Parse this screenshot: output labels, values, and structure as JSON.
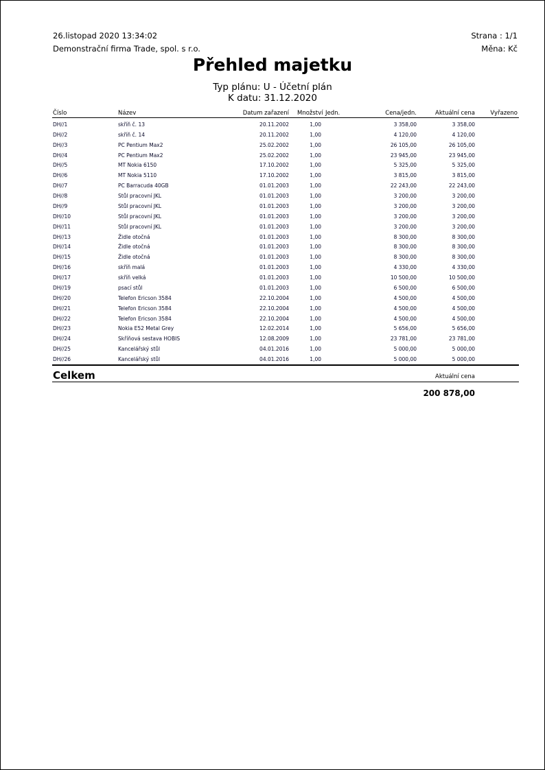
{
  "header": {
    "datetime": "26.listopad 2020 13:34:02",
    "company": "Demonstrační firma Trade, spol. s r.o.",
    "page": "Strana : 1/1",
    "currency": "Měna: Kč",
    "title": "Přehled majetku",
    "plan_type": "Typ plánu: U - Účetní plán",
    "as_of": "K datu: 31.12.2020"
  },
  "columns": {
    "number": "Číslo",
    "name": "Název",
    "date": "Datum zařazení",
    "qty": "Množství",
    "unit": "Jedn.",
    "unit_price": "Cena/jedn.",
    "current_price": "Aktuální cena",
    "retired": "Vyřazeno"
  },
  "rows": [
    [
      "DH//1",
      "skříň č. 13",
      "20.11.2002",
      "1,00",
      "3 358,00",
      "3 358,00"
    ],
    [
      "DH//2",
      "skříň č. 14",
      "20.11.2002",
      "1,00",
      "4 120,00",
      "4 120,00"
    ],
    [
      "DH//3",
      "PC Pentium Max2",
      "25.02.2002",
      "1,00",
      "26 105,00",
      "26 105,00"
    ],
    [
      "DH//4",
      "PC Pentium Max2",
      "25.02.2002",
      "1,00",
      "23 945,00",
      "23 945,00"
    ],
    [
      "DH//5",
      "MT Nokia 6150",
      "17.10.2002",
      "1,00",
      "5 325,00",
      "5 325,00"
    ],
    [
      "DH//6",
      "MT Nokia 5110",
      "17.10.2002",
      "1,00",
      "3 815,00",
      "3 815,00"
    ],
    [
      "DH//7",
      "PC Barracuda 40GB",
      "01.01.2003",
      "1,00",
      "22 243,00",
      "22 243,00"
    ],
    [
      "DH//8",
      "Stůl pracovní JKL",
      "01.01.2003",
      "1,00",
      "3 200,00",
      "3 200,00"
    ],
    [
      "DH//9",
      "Stůl pracovní JKL",
      "01.01.2003",
      "1,00",
      "3 200,00",
      "3 200,00"
    ],
    [
      "DH//10",
      "Stůl pracovní JKL",
      "01.01.2003",
      "1,00",
      "3 200,00",
      "3 200,00"
    ],
    [
      "DH//11",
      "Stůl pracovní JKL",
      "01.01.2003",
      "1,00",
      "3 200,00",
      "3 200,00"
    ],
    [
      "DH//13",
      "Židle otočná",
      "01.01.2003",
      "1,00",
      "8 300,00",
      "8 300,00"
    ],
    [
      "DH//14",
      "Židle otočná",
      "01.01.2003",
      "1,00",
      "8 300,00",
      "8 300,00"
    ],
    [
      "DH//15",
      "Židle otočná",
      "01.01.2003",
      "1,00",
      "8 300,00",
      "8 300,00"
    ],
    [
      "DH//16",
      "skříň malá",
      "01.01.2003",
      "1,00",
      "4 330,00",
      "4 330,00"
    ],
    [
      "DH//17",
      "skříň velká",
      "01.01.2003",
      "1,00",
      "10 500,00",
      "10 500,00"
    ],
    [
      "DH//19",
      "psací stůl",
      "01.01.2003",
      "1,00",
      "6 500,00",
      "6 500,00"
    ],
    [
      "DH//20",
      "Telefon Ericson 3584",
      "22.10.2004",
      "1,00",
      "4 500,00",
      "4 500,00"
    ],
    [
      "DH//21",
      "Telefon Ericson 3584",
      "22.10.2004",
      "1,00",
      "4 500,00",
      "4 500,00"
    ],
    [
      "DH//22",
      "Telefon Ericson 3584",
      "22.10.2004",
      "1,00",
      "4 500,00",
      "4 500,00"
    ],
    [
      "DH//23",
      "Nokia E52 Metal Grey",
      "12.02.2014",
      "1,00",
      "5 656,00",
      "5 656,00"
    ],
    [
      "DH//24",
      "Skříňová sestava HOBIS",
      "12.08.2009",
      "1,00",
      "23 781,00",
      "23 781,00"
    ],
    [
      "DH//25",
      "Kancelářský stůl",
      "04.01.2016",
      "1,00",
      "5 000,00",
      "5 000,00"
    ],
    [
      "DH//26",
      "Kancelářský stůl",
      "04.01.2016",
      "1,00",
      "5 000,00",
      "5 000,00"
    ]
  ],
  "total": {
    "label": "Celkem",
    "column_label": "Aktuální cena",
    "value": "200 878,00"
  }
}
